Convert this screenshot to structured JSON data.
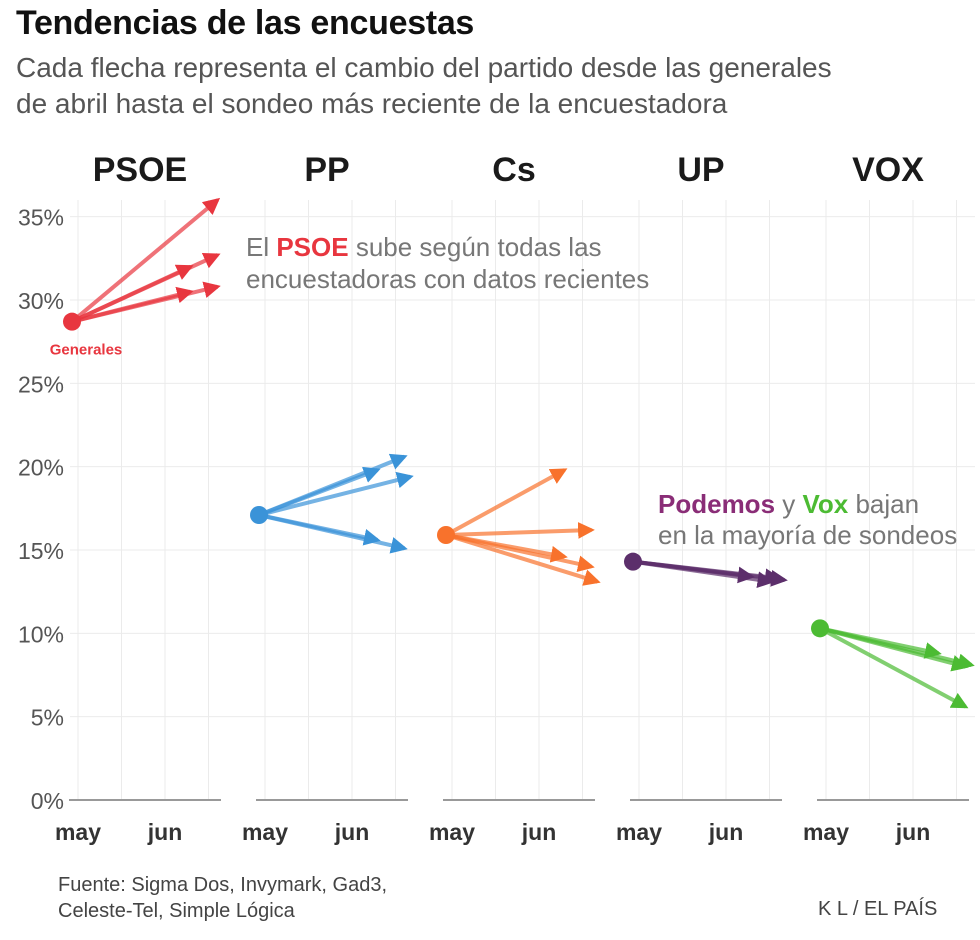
{
  "header": {
    "title": "Tendencias de las encuestas",
    "subtitle_line1": "Cada flecha representa el cambio del partido desde las generales",
    "subtitle_line2": "de abril hasta el sondeo más reciente de la encuestadora"
  },
  "footer": {
    "source_line1": "Fuente: Sigma Dos, Invymark, Gad3,",
    "source_line2": "Celeste-Tel, Simple Lógica",
    "credit": "K L / EL PAÍS"
  },
  "chart_data": {
    "type": "arrow-small-multiples",
    "ylim": [
      0,
      36
    ],
    "y_ticks": [
      0,
      5,
      10,
      15,
      20,
      25,
      30,
      35
    ],
    "y_tick_labels": [
      "0%",
      "5%",
      "10%",
      "15%",
      "20%",
      "25%",
      "30%",
      "35%"
    ],
    "x_tick_labels": [
      "may",
      "jun"
    ],
    "start_label": "Generales",
    "annotations": {
      "psoe": {
        "prefix": "El ",
        "party": "PSOE",
        "rest_line1": " sube según todas las",
        "line2": "encuestadoras con datos recientes"
      },
      "up_vox": {
        "party1": "Podemos",
        "mid": " y ",
        "party2": "Vox",
        "rest_line1": " bajan",
        "line2": "en la mayoría de sondeos"
      }
    },
    "series": [
      {
        "name": "PSOE",
        "color": "#e8363f",
        "start": 28.7,
        "arrows": [
          {
            "t": 0.95,
            "value": 36.0
          },
          {
            "t": 0.77,
            "value": 32.0
          },
          {
            "t": 0.95,
            "value": 32.7
          },
          {
            "t": 0.77,
            "value": 30.5
          },
          {
            "t": 0.95,
            "value": 30.8
          }
        ]
      },
      {
        "name": "PP",
        "color": "#3a93d8",
        "start": 17.1,
        "arrows": [
          {
            "t": 0.95,
            "value": 20.6
          },
          {
            "t": 0.77,
            "value": 19.8
          },
          {
            "t": 0.99,
            "value": 19.4
          },
          {
            "t": 0.77,
            "value": 15.6
          },
          {
            "t": 0.95,
            "value": 15.1
          }
        ]
      },
      {
        "name": "Cs",
        "color": "#f8722c",
        "start": 15.9,
        "arrows": [
          {
            "t": 0.77,
            "value": 19.8
          },
          {
            "t": 0.95,
            "value": 16.2
          },
          {
            "t": 0.77,
            "value": 14.6
          },
          {
            "t": 0.95,
            "value": 14.0
          },
          {
            "t": 0.99,
            "value": 13.1
          }
        ]
      },
      {
        "name": "UP",
        "color": "#5c2f6b",
        "start": 14.3,
        "arrows": [
          {
            "t": 0.77,
            "value": 13.4
          },
          {
            "t": 0.95,
            "value": 13.3
          },
          {
            "t": 0.99,
            "value": 13.2
          },
          {
            "t": 0.9,
            "value": 13.1
          }
        ]
      },
      {
        "name": "VOX",
        "color": "#4cbb33",
        "start": 10.3,
        "arrows": [
          {
            "t": 0.77,
            "value": 8.8
          },
          {
            "t": 0.99,
            "value": 8.1
          },
          {
            "t": 0.95,
            "value": 8.0
          },
          {
            "t": 0.95,
            "value": 5.6
          }
        ]
      }
    ]
  }
}
